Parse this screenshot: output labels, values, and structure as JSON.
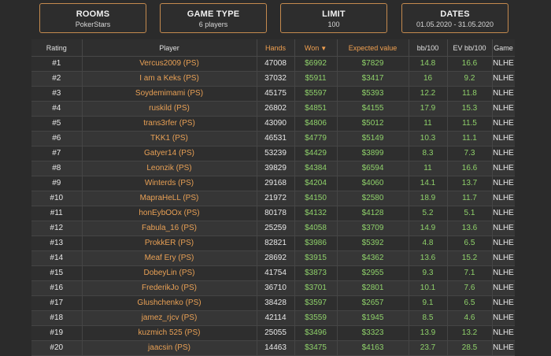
{
  "filters": [
    {
      "title": "ROOMS",
      "value": "PokerStars"
    },
    {
      "title": "GAME TYPE",
      "value": "6 players"
    },
    {
      "title": "LIMIT",
      "value": "100"
    },
    {
      "title": "DATES",
      "value": "01.05.2020 - 31.05.2020"
    }
  ],
  "table": {
    "headers": [
      "Rating",
      "Player",
      "Hands",
      "Won",
      "Expected value",
      "bb/100",
      "EV bb/100",
      "Game"
    ],
    "sort_indicator": "▼",
    "rows": [
      [
        "#1",
        "Vercus2009 (PS)",
        "47008",
        "$6992",
        "$7829",
        "14.8",
        "16.6",
        "NLHE"
      ],
      [
        "#2",
        "I am a Keks (PS)",
        "37032",
        "$5911",
        "$3417",
        "16",
        "9.2",
        "NLHE"
      ],
      [
        "#3",
        "Soydemimami (PS)",
        "45175",
        "$5597",
        "$5393",
        "12.2",
        "11.8",
        "NLHE"
      ],
      [
        "#4",
        "ruskild (PS)",
        "26802",
        "$4851",
        "$4155",
        "17.9",
        "15.3",
        "NLHE"
      ],
      [
        "#5",
        "trans3rfer (PS)",
        "43090",
        "$4806",
        "$5012",
        "11",
        "11.5",
        "NLHE"
      ],
      [
        "#6",
        "TKK1 (PS)",
        "46531",
        "$4779",
        "$5149",
        "10.3",
        "11.1",
        "NLHE"
      ],
      [
        "#7",
        "Gatyer14 (PS)",
        "53239",
        "$4429",
        "$3899",
        "8.3",
        "7.3",
        "NLHE"
      ],
      [
        "#8",
        "Leonzik (PS)",
        "39829",
        "$4384",
        "$6594",
        "11",
        "16.6",
        "NLHE"
      ],
      [
        "#9",
        "Winterds (PS)",
        "29168",
        "$4204",
        "$4060",
        "14.1",
        "13.7",
        "NLHE"
      ],
      [
        "#10",
        "MapraHeLL (PS)",
        "21972",
        "$4150",
        "$2580",
        "18.9",
        "11.7",
        "NLHE"
      ],
      [
        "#11",
        "honEybOOx (PS)",
        "80178",
        "$4132",
        "$4128",
        "5.2",
        "5.1",
        "NLHE"
      ],
      [
        "#12",
        "Fabula_16 (PS)",
        "25259",
        "$4058",
        "$3709",
        "14.9",
        "13.6",
        "NLHE"
      ],
      [
        "#13",
        "ProkkER (PS)",
        "82821",
        "$3986",
        "$5392",
        "4.8",
        "6.5",
        "NLHE"
      ],
      [
        "#14",
        "Meaf Ery (PS)",
        "28692",
        "$3915",
        "$4362",
        "13.6",
        "15.2",
        "NLHE"
      ],
      [
        "#15",
        "DobeyLin (PS)",
        "41754",
        "$3873",
        "$2955",
        "9.3",
        "7.1",
        "NLHE"
      ],
      [
        "#16",
        "FrederikJo (PS)",
        "36710",
        "$3701",
        "$2801",
        "10.1",
        "7.6",
        "NLHE"
      ],
      [
        "#17",
        "Glushchenko (PS)",
        "38428",
        "$3597",
        "$2657",
        "9.1",
        "6.5",
        "NLHE"
      ],
      [
        "#18",
        "jamez_rjcv (PS)",
        "42114",
        "$3559",
        "$1945",
        "8.5",
        "4.6",
        "NLHE"
      ],
      [
        "#19",
        "kuzmich 525 (PS)",
        "25055",
        "$3496",
        "$3323",
        "13.9",
        "13.2",
        "NLHE"
      ],
      [
        "#20",
        "jaacsin (PS)",
        "14463",
        "$3475",
        "$4163",
        "23.7",
        "28.5",
        "NLHE"
      ]
    ]
  },
  "colors": {
    "background": "#2b2b2b",
    "accent_orange": "#e8a055",
    "money_green": "#8fd16a",
    "filter_border": "#c48a4e"
  }
}
